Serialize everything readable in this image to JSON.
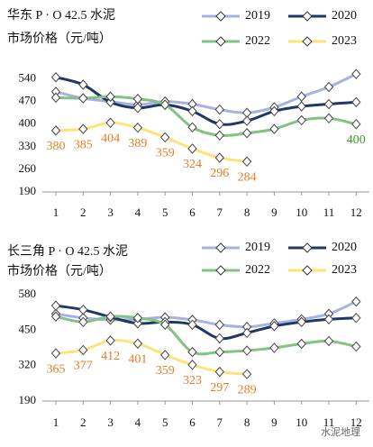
{
  "chart_data": [
    {
      "type": "line",
      "title": "华东 P · O 42.5 水泥",
      "subtitle": "市场价格（元/吨）",
      "categories": [
        "1",
        "2",
        "3",
        "4",
        "5",
        "6",
        "7",
        "8",
        "9",
        "10",
        "11",
        "12"
      ],
      "ylim": [
        190,
        575
      ],
      "yticks": [
        190,
        260,
        330,
        400,
        470,
        540
      ],
      "grid": false,
      "legend": "top-right",
      "series": [
        {
          "name": "2019",
          "color": "#a7b2e2",
          "values": [
            500,
            480,
            470,
            460,
            470,
            462,
            445,
            435,
            452,
            485,
            515,
            555
          ]
        },
        {
          "name": "2020",
          "color": "#1f3864",
          "values": [
            545,
            522,
            468,
            450,
            460,
            440,
            400,
            410,
            440,
            455,
            462,
            468
          ]
        },
        {
          "name": "2022",
          "color": "#82c283",
          "values": [
            482,
            480,
            485,
            478,
            460,
            390,
            365,
            372,
            385,
            412,
            418,
            400
          ],
          "data_labels": "last",
          "label_color": "#3d9a2a"
        },
        {
          "name": "2023",
          "color": "#ffe27a",
          "values": [
            380,
            385,
            404,
            389,
            359,
            324,
            296,
            284,
            null,
            null,
            null,
            null
          ],
          "data_labels": "all",
          "label_color": "#e67d22"
        }
      ]
    },
    {
      "type": "line",
      "title": "长三角 P · O 42.5 水泥",
      "subtitle": "市场价格（元/吨）",
      "categories": [
        "1",
        "2",
        "3",
        "4",
        "5",
        "6",
        "7",
        "8",
        "9",
        "10",
        "11",
        "12"
      ],
      "ylim": [
        190,
        610
      ],
      "yticks": [
        190,
        320,
        450,
        580
      ],
      "grid": false,
      "legend": "top-right",
      "series": [
        {
          "name": "2019",
          "color": "#a7b2e2",
          "values": [
            510,
            495,
            488,
            490,
            497,
            488,
            470,
            462,
            475,
            490,
            510,
            555
          ]
        },
        {
          "name": "2020",
          "color": "#1f3864",
          "values": [
            540,
            525,
            498,
            475,
            480,
            470,
            420,
            440,
            465,
            480,
            490,
            495
          ]
        },
        {
          "name": "2022",
          "color": "#82c283",
          "values": [
            500,
            480,
            500,
            495,
            470,
            370,
            370,
            375,
            385,
            400,
            410,
            390
          ]
        },
        {
          "name": "2023",
          "color": "#ffe27a",
          "values": [
            365,
            377,
            412,
            401,
            359,
            323,
            297,
            289,
            null,
            null,
            null,
            null
          ],
          "data_labels": "all",
          "label_color": "#e67d22"
        }
      ]
    }
  ],
  "watermark": "水泥地理"
}
